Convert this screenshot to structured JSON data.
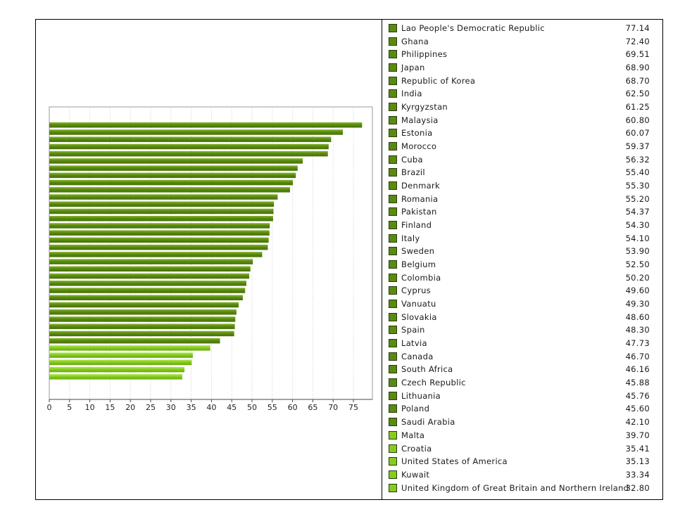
{
  "chart_data": {
    "type": "bar",
    "orientation": "horizontal",
    "title": "",
    "xlabel": "",
    "ylabel": "",
    "xlim": [
      0,
      80
    ],
    "x_ticks": [
      0,
      5,
      10,
      15,
      20,
      25,
      30,
      35,
      40,
      45,
      50,
      55,
      60,
      65,
      70,
      75
    ],
    "grid": "vertical dotted",
    "legend_placement": "right",
    "colors": {
      "dark_green": "#5a8a10",
      "light_green": "#86cc1e"
    },
    "categories": [
      "Lao People's Democratic Republic",
      "Ghana",
      "Philippines",
      "Japan",
      "Republic of Korea",
      "India",
      "Kyrgyzstan",
      "Malaysia",
      "Estonia",
      "Morocco",
      "Cuba",
      "Brazil",
      "Denmark",
      "Romania",
      "Pakistan",
      "Finland",
      "Italy",
      "Sweden",
      "Belgium",
      "Colombia",
      "Cyprus",
      "Vanuatu",
      "Slovakia",
      "Spain",
      "Latvia",
      "Canada",
      "South Africa",
      "Czech Republic",
      "Lithuania",
      "Poland",
      "Saudi Arabia",
      "Malta",
      "Croatia",
      "United States of America",
      "Kuwait",
      "United Kingdom of Great Britain and Northern Ireland"
    ],
    "values": [
      77.14,
      72.4,
      69.51,
      68.9,
      68.7,
      62.5,
      61.25,
      60.8,
      60.07,
      59.37,
      56.32,
      55.4,
      55.3,
      55.2,
      54.37,
      54.3,
      54.1,
      53.9,
      52.5,
      50.2,
      49.6,
      49.3,
      48.6,
      48.3,
      47.73,
      46.7,
      46.16,
      45.88,
      45.76,
      45.6,
      42.1,
      39.7,
      35.41,
      35.13,
      33.34,
      32.8
    ],
    "value_labels": [
      "77.14",
      "72.40",
      "69.51",
      "68.90",
      "68.70",
      "62.50",
      "61.25",
      "60.80",
      "60.07",
      "59.37",
      "56.32",
      "55.40",
      "55.30",
      "55.20",
      "54.37",
      "54.30",
      "54.10",
      "53.90",
      "52.50",
      "50.20",
      "49.60",
      "49.30",
      "48.60",
      "48.30",
      "47.73",
      "46.70",
      "46.16",
      "45.88",
      "45.76",
      "45.60",
      "42.10",
      "39.70",
      "35.41",
      "35.13",
      "33.34",
      "32.80"
    ],
    "bar_colors": [
      "dark",
      "dark",
      "dark",
      "dark",
      "dark",
      "dark",
      "dark",
      "dark",
      "dark",
      "dark",
      "dark",
      "dark",
      "dark",
      "dark",
      "dark",
      "dark",
      "dark",
      "dark",
      "dark",
      "dark",
      "dark",
      "dark",
      "dark",
      "dark",
      "dark",
      "dark",
      "dark",
      "dark",
      "dark",
      "dark",
      "dark",
      "light",
      "light",
      "light",
      "light",
      "light"
    ]
  }
}
